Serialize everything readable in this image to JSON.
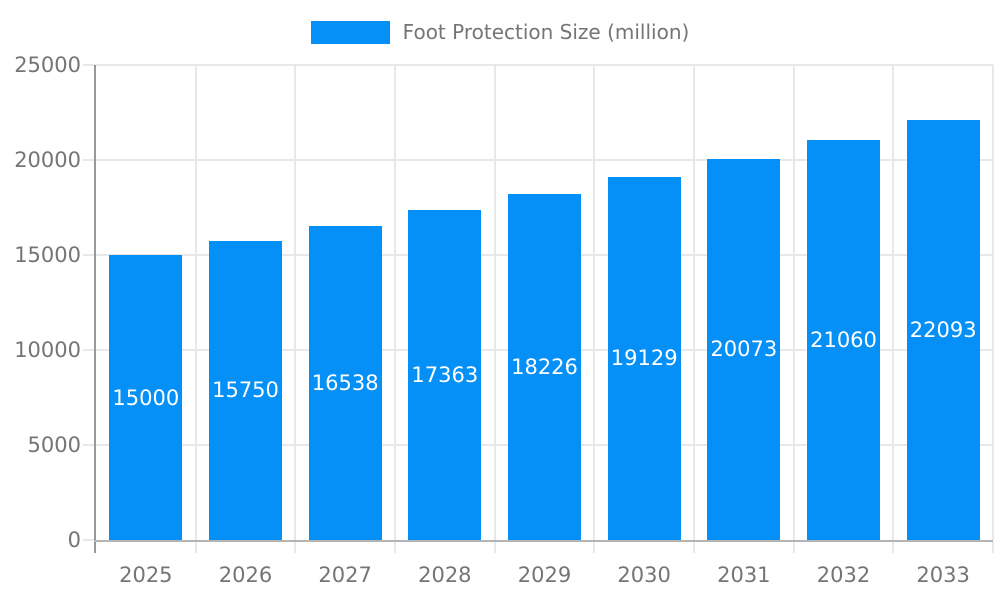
{
  "chart_data": {
    "type": "bar",
    "title": "Foot Protection Size (million)",
    "legend_label": "Foot Protection Size (million)",
    "legend_position": "top",
    "categories": [
      "2025",
      "2026",
      "2027",
      "2028",
      "2029",
      "2030",
      "2031",
      "2032",
      "2033"
    ],
    "values": [
      15000,
      15750,
      16538,
      17363,
      18226,
      19129,
      20073,
      21060,
      22093
    ],
    "value_labels": [
      "15000",
      "15750",
      "16538",
      "17363",
      "18226",
      "19129",
      "20073",
      "21060",
      "22093"
    ],
    "xlabel": "",
    "ylabel": "",
    "ylim": [
      0,
      25000
    ],
    "ytick_step": 5000,
    "yticks": [
      "0",
      "5000",
      "10000",
      "15000",
      "20000",
      "25000"
    ],
    "grid": true,
    "colors": {
      "bar": "#0590f8",
      "axis_text": "#757575",
      "value_text": "#ffffff",
      "grid_line": "#e8e8e8",
      "y_axis_line": "#999999",
      "x_axis_line": "#b5b5b5",
      "background": "#ffffff"
    }
  }
}
